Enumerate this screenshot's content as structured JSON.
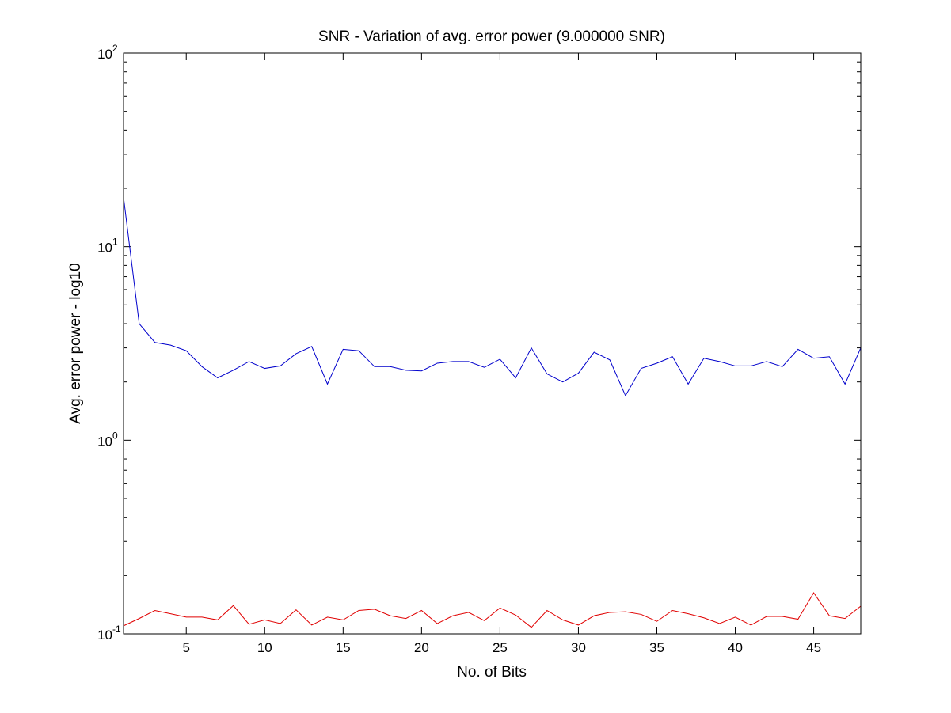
{
  "chart_data": {
    "type": "line",
    "title": "SNR - Variation of avg. error power (9.000000 SNR)",
    "xlabel": "No. of Bits",
    "ylabel": "Avg. error power - log10",
    "xlim": [
      1,
      48
    ],
    "ylim": [
      0.1,
      100
    ],
    "yscale": "log",
    "grid": false,
    "x_ticks": [
      5,
      10,
      15,
      20,
      25,
      30,
      35,
      40,
      45
    ],
    "y_ticks": [
      {
        "value": 0.1,
        "base": "10",
        "exp": "-1"
      },
      {
        "value": 1,
        "base": "10",
        "exp": "0"
      },
      {
        "value": 10,
        "base": "10",
        "exp": "1"
      },
      {
        "value": 100,
        "base": "10",
        "exp": "2"
      }
    ],
    "x": [
      1,
      2,
      3,
      4,
      5,
      6,
      7,
      8,
      9,
      10,
      11,
      12,
      13,
      14,
      15,
      16,
      17,
      18,
      19,
      20,
      21,
      22,
      23,
      24,
      25,
      26,
      27,
      28,
      29,
      30,
      31,
      32,
      33,
      34,
      35,
      36,
      37,
      38,
      39,
      40,
      41,
      42,
      43,
      44,
      45,
      46,
      47,
      48
    ],
    "series": [
      {
        "color": "#0000cc",
        "values": [
          18.0,
          4.0,
          3.2,
          3.1,
          2.9,
          2.4,
          2.1,
          2.3,
          2.55,
          2.35,
          2.42,
          2.8,
          3.05,
          1.95,
          2.95,
          2.9,
          2.4,
          2.4,
          2.3,
          2.28,
          2.5,
          2.55,
          2.55,
          2.38,
          2.62,
          2.1,
          3.0,
          2.2,
          2.0,
          2.22,
          2.85,
          2.6,
          1.7,
          2.35,
          2.5,
          2.7,
          1.95,
          2.65,
          2.55,
          2.42,
          2.42,
          2.55,
          2.4,
          2.95,
          2.65,
          2.7,
          1.95,
          3.0
        ]
      },
      {
        "color": "#e00000",
        "values": [
          0.11,
          0.12,
          0.132,
          0.127,
          0.122,
          0.122,
          0.118,
          0.14,
          0.112,
          0.118,
          0.113,
          0.133,
          0.111,
          0.122,
          0.118,
          0.132,
          0.134,
          0.124,
          0.12,
          0.132,
          0.113,
          0.124,
          0.129,
          0.117,
          0.136,
          0.125,
          0.108,
          0.132,
          0.118,
          0.111,
          0.124,
          0.129,
          0.13,
          0.126,
          0.116,
          0.132,
          0.127,
          0.121,
          0.113,
          0.122,
          0.111,
          0.123,
          0.123,
          0.119,
          0.163,
          0.124,
          0.12,
          0.139
        ]
      }
    ]
  }
}
